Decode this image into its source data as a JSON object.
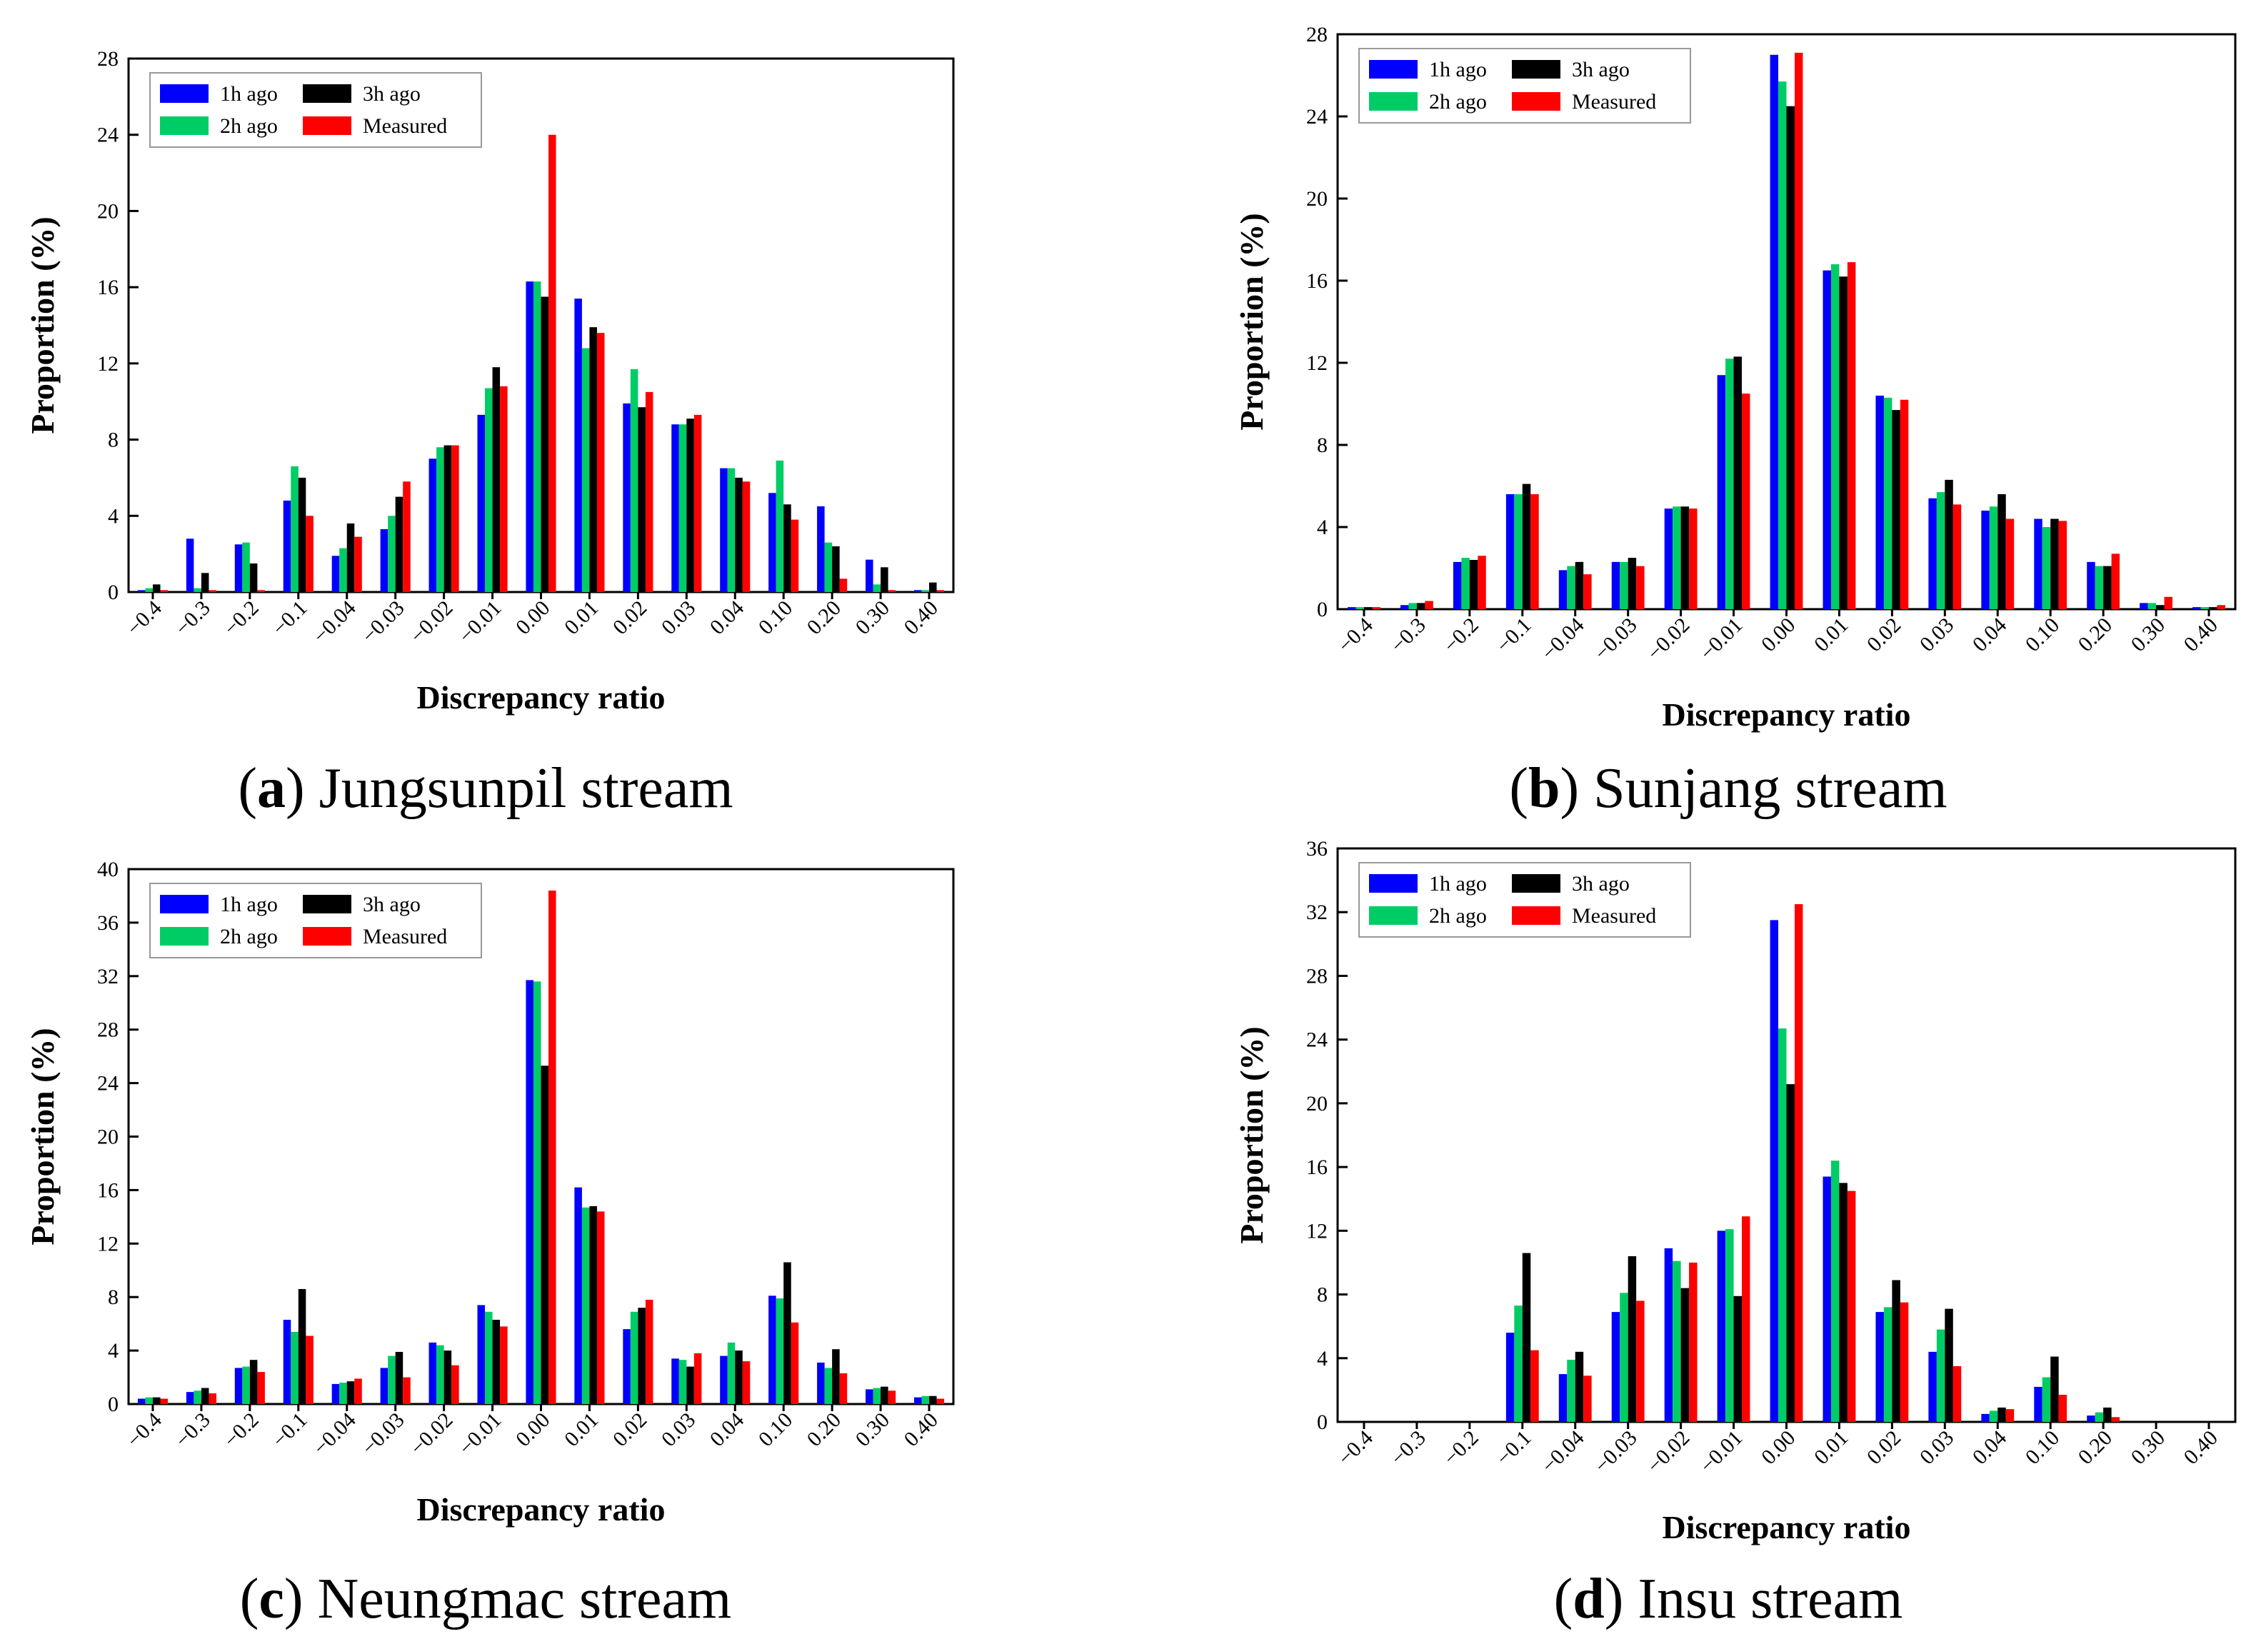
{
  "chart_data": [
    {
      "type": "bar",
      "caption_letter": "a",
      "caption_text": "Jungsunpil stream",
      "xlabel": "Discrepancy ratio",
      "ylabel": "Proportion (%)",
      "ylim": [
        0,
        28
      ],
      "yticks": [
        0,
        4,
        8,
        12,
        16,
        20,
        24,
        28
      ],
      "legend_position": "top-left",
      "categories": [
        "−0.4",
        "−0.3",
        "−0.2",
        "−0.1",
        "−0.04",
        "−0.03",
        "−0.02",
        "−0.01",
        "0.00",
        "0.01",
        "0.02",
        "0.03",
        "0.04",
        "0.10",
        "0.20",
        "0.30",
        "0.40"
      ],
      "series": [
        {
          "name": "1h ago",
          "color": "#0000ff",
          "values": [
            0.1,
            2.8,
            2.5,
            4.8,
            1.9,
            3.3,
            7.0,
            9.3,
            16.3,
            15.4,
            9.9,
            8.8,
            6.5,
            5.2,
            4.5,
            1.7,
            0.1
          ]
        },
        {
          "name": "2h ago",
          "color": "#00cc66",
          "values": [
            0.2,
            0.2,
            2.6,
            6.6,
            2.3,
            4.0,
            7.6,
            10.7,
            16.3,
            12.8,
            11.7,
            8.8,
            6.5,
            6.9,
            2.6,
            0.4,
            0.1
          ]
        },
        {
          "name": "3h ago",
          "color": "#000000",
          "values": [
            0.4,
            1.0,
            1.5,
            6.0,
            3.6,
            5.0,
            7.7,
            11.8,
            15.5,
            13.9,
            9.7,
            9.1,
            6.0,
            4.6,
            2.4,
            1.3,
            0.5
          ]
        },
        {
          "name": "Measured",
          "color": "#ff0000",
          "values": [
            0.1,
            0.1,
            0.1,
            4.0,
            2.9,
            5.8,
            7.7,
            10.8,
            24.0,
            13.6,
            10.5,
            9.3,
            5.8,
            3.8,
            0.7,
            0.1,
            0.1
          ]
        }
      ]
    },
    {
      "type": "bar",
      "caption_letter": "b",
      "caption_text": "Sunjang stream",
      "xlabel": "Discrepancy ratio",
      "ylabel": "Proportion (%)",
      "ylim": [
        0,
        28
      ],
      "yticks": [
        0,
        4,
        8,
        12,
        16,
        20,
        24,
        28
      ],
      "legend_position": "top-left",
      "categories": [
        "−0.4",
        "−0.3",
        "−0.2",
        "−0.1",
        "−0.04",
        "−0.03",
        "−0.02",
        "−0.01",
        "0.00",
        "0.01",
        "0.02",
        "0.03",
        "0.04",
        "0.10",
        "0.20",
        "0.30",
        "0.40"
      ],
      "series": [
        {
          "name": "1h ago",
          "color": "#0000ff",
          "values": [
            0.1,
            0.2,
            2.3,
            5.6,
            1.9,
            2.3,
            4.9,
            11.4,
            27.0,
            16.5,
            10.4,
            5.4,
            4.8,
            4.4,
            2.3,
            0.3,
            0.1
          ]
        },
        {
          "name": "2h ago",
          "color": "#00cc66",
          "values": [
            0.1,
            0.3,
            2.5,
            5.6,
            2.1,
            2.3,
            5.0,
            12.2,
            25.7,
            16.8,
            10.3,
            5.7,
            5.0,
            4.0,
            2.1,
            0.3,
            0.1
          ]
        },
        {
          "name": "3h ago",
          "color": "#000000",
          "values": [
            0.1,
            0.3,
            2.4,
            6.1,
            2.3,
            2.5,
            5.0,
            12.3,
            24.5,
            16.2,
            9.7,
            6.3,
            5.6,
            4.4,
            2.1,
            0.2,
            0.1
          ]
        },
        {
          "name": "Measured",
          "color": "#ff0000",
          "values": [
            0.1,
            0.4,
            2.6,
            5.6,
            1.7,
            2.1,
            4.9,
            10.5,
            27.1,
            16.9,
            10.2,
            5.1,
            4.4,
            4.3,
            2.7,
            0.6,
            0.2
          ]
        }
      ]
    },
    {
      "type": "bar",
      "caption_letter": "c",
      "caption_text": "Neungmac stream",
      "xlabel": "Discrepancy ratio",
      "ylabel": "Proportion (%)",
      "ylim": [
        0,
        40
      ],
      "yticks": [
        0,
        4,
        8,
        12,
        16,
        20,
        24,
        28,
        32,
        36,
        40
      ],
      "legend_position": "top-left",
      "categories": [
        "−0.4",
        "−0.3",
        "−0.2",
        "−0.1",
        "−0.04",
        "−0.03",
        "−0.02",
        "−0.01",
        "0.00",
        "0.01",
        "0.02",
        "0.03",
        "0.04",
        "0.10",
        "0.20",
        "0.30",
        "0.40"
      ],
      "series": [
        {
          "name": "1h ago",
          "color": "#0000ff",
          "values": [
            0.4,
            0.9,
            2.7,
            6.3,
            1.5,
            2.7,
            4.6,
            7.4,
            31.7,
            16.2,
            5.6,
            3.4,
            3.6,
            8.1,
            3.1,
            1.1,
            0.5
          ]
        },
        {
          "name": "2h ago",
          "color": "#00cc66",
          "values": [
            0.5,
            1.0,
            2.8,
            5.4,
            1.6,
            3.6,
            4.4,
            6.9,
            31.6,
            14.7,
            6.9,
            3.3,
            4.6,
            7.9,
            2.7,
            1.2,
            0.6
          ]
        },
        {
          "name": "3h ago",
          "color": "#000000",
          "values": [
            0.5,
            1.2,
            3.3,
            8.6,
            1.7,
            3.9,
            4.0,
            6.3,
            25.3,
            14.8,
            7.2,
            2.8,
            4.0,
            10.6,
            4.1,
            1.3,
            0.6
          ]
        },
        {
          "name": "Measured",
          "color": "#ff0000",
          "values": [
            0.4,
            0.8,
            2.4,
            5.1,
            1.9,
            2.0,
            2.9,
            5.8,
            38.4,
            14.4,
            7.8,
            3.8,
            3.2,
            6.1,
            2.3,
            1.0,
            0.4
          ]
        }
      ]
    },
    {
      "type": "bar",
      "caption_letter": "d",
      "caption_text": "Insu stream",
      "xlabel": "Discrepancy ratio",
      "ylabel": "Proportion (%)",
      "ylim": [
        0,
        36
      ],
      "yticks": [
        0,
        4,
        8,
        12,
        16,
        20,
        24,
        28,
        32,
        36
      ],
      "legend_position": "top-left",
      "categories": [
        "−0.4",
        "−0.3",
        "−0.2",
        "−0.1",
        "−0.04",
        "−0.03",
        "−0.02",
        "−0.01",
        "0.00",
        "0.01",
        "0.02",
        "0.03",
        "0.04",
        "0.10",
        "0.20",
        "0.30",
        "0.40"
      ],
      "series": [
        {
          "name": "1h ago",
          "color": "#0000ff",
          "values": [
            0.0,
            0.0,
            0.0,
            5.6,
            3.0,
            6.9,
            10.9,
            12.0,
            31.5,
            15.4,
            6.9,
            4.4,
            0.5,
            2.2,
            0.4,
            0.0,
            0.0
          ]
        },
        {
          "name": "2h ago",
          "color": "#00cc66",
          "values": [
            0.0,
            0.0,
            0.0,
            7.3,
            3.9,
            8.1,
            10.1,
            12.1,
            24.7,
            16.4,
            7.2,
            5.8,
            0.7,
            2.8,
            0.6,
            0.0,
            0.0
          ]
        },
        {
          "name": "3h ago",
          "color": "#000000",
          "values": [
            0.0,
            0.0,
            0.0,
            10.6,
            4.4,
            10.4,
            8.4,
            7.9,
            21.2,
            15.0,
            8.9,
            7.1,
            0.9,
            4.1,
            0.9,
            0.0,
            0.0
          ]
        },
        {
          "name": "Measured",
          "color": "#ff0000",
          "values": [
            0.0,
            0.0,
            0.0,
            4.5,
            2.9,
            7.6,
            10.0,
            12.9,
            32.5,
            14.5,
            7.5,
            3.5,
            0.8,
            1.7,
            0.3,
            0.0,
            0.0
          ]
        }
      ]
    }
  ]
}
